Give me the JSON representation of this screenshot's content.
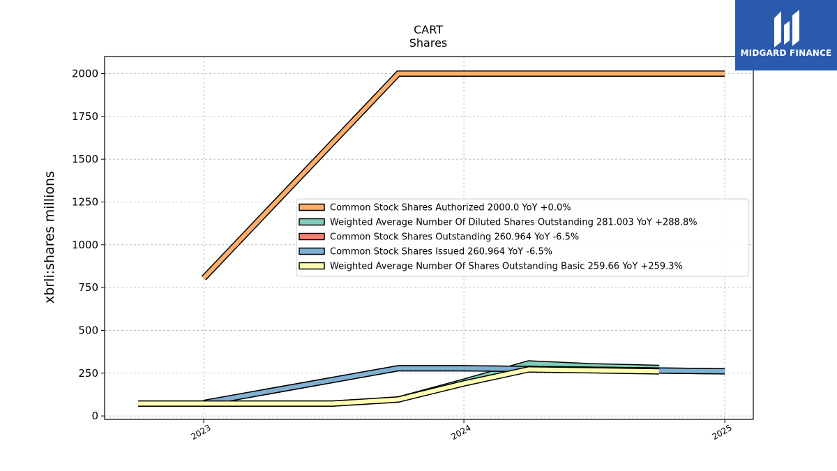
{
  "logo": {
    "text": "MIDGARD FINANCE",
    "color": "#2a5aac"
  },
  "chart_data": {
    "type": "line",
    "title": "CART",
    "subtitle": "Shares",
    "ylabel": "xbrli:shares millions",
    "xlabel": "",
    "ylim": [
      -20,
      2100
    ],
    "yticks": [
      0,
      250,
      500,
      750,
      1000,
      1250,
      1500,
      1750,
      2000
    ],
    "xlim": [
      "2022-08-15",
      "2025-02-10"
    ],
    "xticks": [
      {
        "date": "2023-01-01",
        "label": "2023"
      },
      {
        "date": "2024-01-01",
        "label": "2024"
      },
      {
        "date": "2025-01-01",
        "label": "2025"
      }
    ],
    "grid": true,
    "legend_position": "center-right",
    "series": [
      {
        "name": "Common Stock Shares Authorized",
        "legend": "Common Stock Shares Authorized  2000.0 YoY +0.0%",
        "color": "#fdae6b",
        "points": [
          [
            "2023-01-01",
            805
          ],
          [
            "2023-10-01",
            2000
          ],
          [
            "2025-01-01",
            2000
          ]
        ]
      },
      {
        "name": "Weighted Average Number Of Diluted Shares Outstanding",
        "legend": "Weighted Average Number Of Diluted Shares Outstanding  281.003 YoY +288.8%",
        "color": "#7fcdbb",
        "points": [
          [
            "2022-10-01",
            72
          ],
          [
            "2023-01-01",
            72
          ],
          [
            "2023-07-01",
            72
          ],
          [
            "2023-10-01",
            96
          ],
          [
            "2024-01-01",
            200
          ],
          [
            "2024-04-01",
            307
          ],
          [
            "2024-07-01",
            290
          ],
          [
            "2024-10-01",
            281
          ]
        ]
      },
      {
        "name": "Common Stock Shares Outstanding",
        "legend": "Common Stock Shares Outstanding  260.964 YoY -6.5%",
        "color": "#fb8072",
        "points": [
          [
            "2023-01-01",
            76
          ],
          [
            "2023-10-01",
            279
          ],
          [
            "2024-01-01",
            279
          ],
          [
            "2025-01-01",
            261
          ]
        ]
      },
      {
        "name": "Common Stock Shares Issued",
        "legend": "Common Stock Shares Issued  260.964 YoY -6.5%",
        "color": "#80b1d3",
        "points": [
          [
            "2023-01-01",
            76
          ],
          [
            "2023-10-01",
            279
          ],
          [
            "2024-01-01",
            279
          ],
          [
            "2025-01-01",
            261
          ]
        ]
      },
      {
        "name": "Weighted Average Number Of Shares Outstanding Basic",
        "legend": "Weighted Average Number Of Shares Outstanding Basic  259.66 YoY +259.3%",
        "color": "#ffffb3",
        "points": [
          [
            "2022-10-01",
            72
          ],
          [
            "2023-01-01",
            72
          ],
          [
            "2023-07-01",
            72
          ],
          [
            "2023-10-01",
            96
          ],
          [
            "2024-01-01",
            190
          ],
          [
            "2024-04-01",
            272
          ],
          [
            "2024-07-01",
            266
          ],
          [
            "2024-10-01",
            260
          ]
        ]
      }
    ]
  }
}
